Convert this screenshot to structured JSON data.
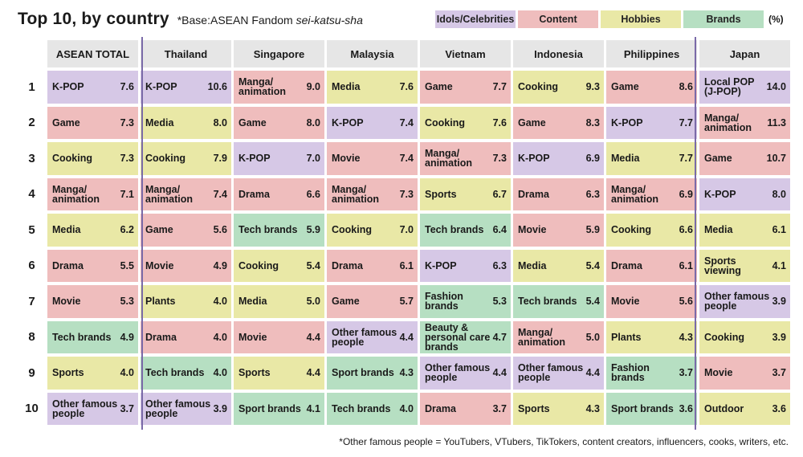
{
  "title": "Top 10, by country",
  "base_prefix": "*Base:ASEAN Fandom ",
  "base_italic": "sei-katsu-sha",
  "unit": "(%)",
  "footnote": "*Other famous people = YouTubers, VTubers, TikTokers, content creators, influencers, cooks, writers, etc.",
  "legend": [
    {
      "key": "idols",
      "label": "Idols/Celebrities",
      "color": "#d6c8e6"
    },
    {
      "key": "content",
      "label": "Content",
      "color": "#efbdbd"
    },
    {
      "key": "hobbies",
      "label": "Hobbies",
      "color": "#e9e8a6"
    },
    {
      "key": "brands",
      "label": "Brands",
      "color": "#b6dfc2"
    }
  ],
  "chart_data": {
    "type": "table",
    "ranks": [
      "1",
      "2",
      "3",
      "4",
      "5",
      "6",
      "7",
      "8",
      "9",
      "10"
    ],
    "columns": [
      {
        "name": "ASEAN TOTAL",
        "items": [
          {
            "label": "K-POP",
            "value": "7.6",
            "category": "idols"
          },
          {
            "label": "Game",
            "value": "7.3",
            "category": "content"
          },
          {
            "label": "Cooking",
            "value": "7.3",
            "category": "hobbies"
          },
          {
            "label": "Manga/\nanimation",
            "value": "7.1",
            "category": "content"
          },
          {
            "label": "Media",
            "value": "6.2",
            "category": "hobbies"
          },
          {
            "label": "Drama",
            "value": "5.5",
            "category": "content"
          },
          {
            "label": "Movie",
            "value": "5.3",
            "category": "content"
          },
          {
            "label": "Tech brands",
            "value": "4.9",
            "category": "brands"
          },
          {
            "label": "Sports",
            "value": "4.0",
            "category": "hobbies"
          },
          {
            "label": "Other famous\npeople",
            "value": "3.7",
            "category": "idols"
          }
        ]
      },
      {
        "name": "Thailand",
        "items": [
          {
            "label": "K-POP",
            "value": "10.6",
            "category": "idols"
          },
          {
            "label": "Media",
            "value": "8.0",
            "category": "hobbies"
          },
          {
            "label": "Cooking",
            "value": "7.9",
            "category": "hobbies"
          },
          {
            "label": "Manga/\nanimation",
            "value": "7.4",
            "category": "content"
          },
          {
            "label": "Game",
            "value": "5.6",
            "category": "content"
          },
          {
            "label": "Movie",
            "value": "4.9",
            "category": "content"
          },
          {
            "label": "Plants",
            "value": "4.0",
            "category": "hobbies"
          },
          {
            "label": "Drama",
            "value": "4.0",
            "category": "content"
          },
          {
            "label": "Tech brands",
            "value": "4.0",
            "category": "brands"
          },
          {
            "label": "Other famous\npeople",
            "value": "3.9",
            "category": "idols"
          }
        ]
      },
      {
        "name": "Singapore",
        "items": [
          {
            "label": "Manga/\nanimation",
            "value": "9.0",
            "category": "content"
          },
          {
            "label": "Game",
            "value": "8.0",
            "category": "content"
          },
          {
            "label": "K-POP",
            "value": "7.0",
            "category": "idols"
          },
          {
            "label": "Drama",
            "value": "6.6",
            "category": "content"
          },
          {
            "label": "Tech brands",
            "value": "5.9",
            "category": "brands"
          },
          {
            "label": "Cooking",
            "value": "5.4",
            "category": "hobbies"
          },
          {
            "label": "Media",
            "value": "5.0",
            "category": "hobbies"
          },
          {
            "label": "Movie",
            "value": "4.4",
            "category": "content"
          },
          {
            "label": "Sports",
            "value": "4.4",
            "category": "hobbies"
          },
          {
            "label": "Sport brands",
            "value": "4.1",
            "category": "brands"
          }
        ]
      },
      {
        "name": "Malaysia",
        "items": [
          {
            "label": "Media",
            "value": "7.6",
            "category": "hobbies"
          },
          {
            "label": "K-POP",
            "value": "7.4",
            "category": "idols"
          },
          {
            "label": "Movie",
            "value": "7.4",
            "category": "content"
          },
          {
            "label": "Manga/\nanimation",
            "value": "7.3",
            "category": "content"
          },
          {
            "label": "Cooking",
            "value": "7.0",
            "category": "hobbies"
          },
          {
            "label": "Drama",
            "value": "6.1",
            "category": "content"
          },
          {
            "label": "Game",
            "value": "5.7",
            "category": "content"
          },
          {
            "label": "Other famous\npeople",
            "value": "4.4",
            "category": "idols"
          },
          {
            "label": "Sport brands",
            "value": "4.3",
            "category": "brands"
          },
          {
            "label": "Tech brands",
            "value": "4.0",
            "category": "brands"
          }
        ]
      },
      {
        "name": "Vietnam",
        "items": [
          {
            "label": "Game",
            "value": "7.7",
            "category": "content"
          },
          {
            "label": "Cooking",
            "value": "7.6",
            "category": "hobbies"
          },
          {
            "label": "Manga/\nanimation",
            "value": "7.3",
            "category": "content"
          },
          {
            "label": "Sports",
            "value": "6.7",
            "category": "hobbies"
          },
          {
            "label": "Tech brands",
            "value": "6.4",
            "category": "brands"
          },
          {
            "label": "K-POP",
            "value": "6.3",
            "category": "idols"
          },
          {
            "label": "Fashion brands",
            "value": "5.3",
            "category": "brands"
          },
          {
            "label": "Beauty &\npersonal care\nbrands",
            "value": "4.7",
            "category": "brands"
          },
          {
            "label": "Other famous\npeople",
            "value": "4.4",
            "category": "idols"
          },
          {
            "label": "Drama",
            "value": "3.7",
            "category": "content"
          }
        ]
      },
      {
        "name": "Indonesia",
        "items": [
          {
            "label": "Cooking",
            "value": "9.3",
            "category": "hobbies"
          },
          {
            "label": "Game",
            "value": "8.3",
            "category": "content"
          },
          {
            "label": "K-POP",
            "value": "6.9",
            "category": "idols"
          },
          {
            "label": "Drama",
            "value": "6.3",
            "category": "content"
          },
          {
            "label": "Movie",
            "value": "5.9",
            "category": "content"
          },
          {
            "label": "Media",
            "value": "5.4",
            "category": "hobbies"
          },
          {
            "label": "Tech brands",
            "value": "5.4",
            "category": "brands"
          },
          {
            "label": "Manga/\nanimation",
            "value": "5.0",
            "category": "content"
          },
          {
            "label": "Other famous\npeople",
            "value": "4.4",
            "category": "idols"
          },
          {
            "label": "Sports",
            "value": "4.3",
            "category": "hobbies"
          }
        ]
      },
      {
        "name": "Philippines",
        "items": [
          {
            "label": "Game",
            "value": "8.6",
            "category": "content"
          },
          {
            "label": "K-POP",
            "value": "7.7",
            "category": "idols"
          },
          {
            "label": "Media",
            "value": "7.7",
            "category": "hobbies"
          },
          {
            "label": "Manga/\nanimation",
            "value": "6.9",
            "category": "content"
          },
          {
            "label": "Cooking",
            "value": "6.6",
            "category": "hobbies"
          },
          {
            "label": "Drama",
            "value": "6.1",
            "category": "content"
          },
          {
            "label": "Movie",
            "value": "5.6",
            "category": "content"
          },
          {
            "label": "Plants",
            "value": "4.3",
            "category": "hobbies"
          },
          {
            "label": "Fashion brands",
            "value": "3.7",
            "category": "brands"
          },
          {
            "label": "Sport brands",
            "value": "3.6",
            "category": "brands"
          }
        ]
      },
      {
        "name": "Japan",
        "items": [
          {
            "label": "Local POP\n(J-POP)",
            "value": "14.0",
            "category": "idols"
          },
          {
            "label": "Manga/\nanimation",
            "value": "11.3",
            "category": "content"
          },
          {
            "label": "Game",
            "value": "10.7",
            "category": "content"
          },
          {
            "label": "K-POP",
            "value": "8.0",
            "category": "idols"
          },
          {
            "label": "Media",
            "value": "6.1",
            "category": "hobbies"
          },
          {
            "label": "Sports viewing",
            "value": "4.1",
            "category": "hobbies"
          },
          {
            "label": "Other famous\npeople",
            "value": "3.9",
            "category": "idols"
          },
          {
            "label": "Cooking",
            "value": "3.9",
            "category": "hobbies"
          },
          {
            "label": "Movie",
            "value": "3.7",
            "category": "content"
          },
          {
            "label": "Outdoor",
            "value": "3.6",
            "category": "hobbies"
          }
        ]
      }
    ]
  }
}
